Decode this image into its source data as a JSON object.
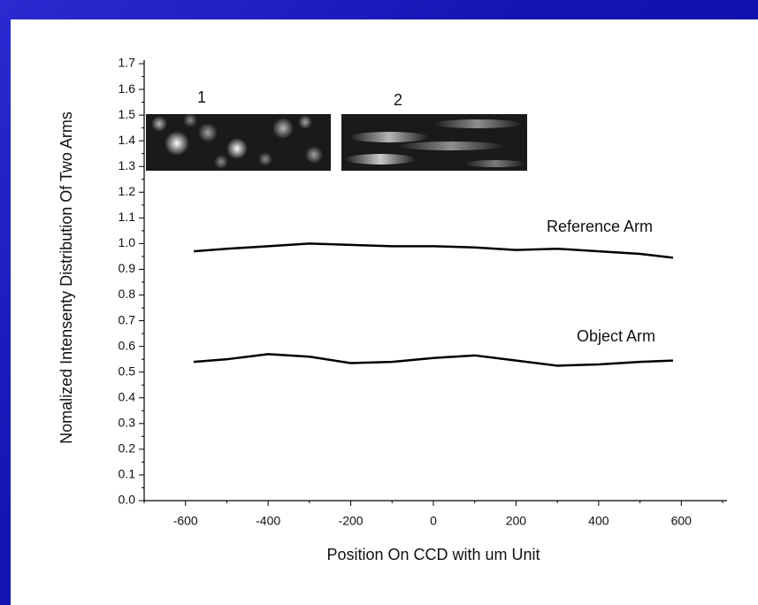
{
  "chart_data": {
    "type": "line",
    "xlabel": "Position On CCD with um Unit",
    "ylabel": "Nomalized Intensenty Distribution Of Two Arms",
    "x": [
      -580,
      -500,
      -400,
      -300,
      -200,
      -100,
      0,
      100,
      200,
      300,
      400,
      500,
      580
    ],
    "series": [
      {
        "name": "Reference Arm",
        "color": "#000000",
        "values": [
          0.97,
          0.98,
          0.99,
          1.0,
          0.995,
          0.99,
          0.99,
          0.985,
          0.975,
          0.98,
          0.97,
          0.96,
          0.945
        ]
      },
      {
        "name": "Object Arm",
        "color": "#000000",
        "values": [
          0.54,
          0.55,
          0.57,
          0.56,
          0.535,
          0.54,
          0.555,
          0.565,
          0.545,
          0.525,
          0.53,
          0.54,
          0.545
        ]
      }
    ],
    "annotations": [
      "1",
      "2"
    ],
    "xlim": [
      -700,
      700
    ],
    "xticks": [
      -600,
      -400,
      -200,
      0,
      200,
      400,
      600
    ],
    "ylim": [
      0,
      1.7
    ],
    "yticks": [
      {
        "value": 0,
        "label": "0.0"
      },
      {
        "value": 0.1,
        "label": "0.1"
      },
      {
        "value": 0.2,
        "label": "0.2"
      },
      {
        "value": 0.3,
        "label": "0.3"
      },
      {
        "value": 0.4,
        "label": "0.4"
      },
      {
        "value": 0.5,
        "label": "0.5"
      },
      {
        "value": 0.6,
        "label": "0.6"
      },
      {
        "value": 0.7,
        "label": "0.7"
      },
      {
        "value": 0.8,
        "label": "0.8"
      },
      {
        "value": 0.9,
        "label": "0.9"
      },
      {
        "value": 1.0,
        "label": "1.0"
      },
      {
        "value": 1.1,
        "label": "1.1"
      },
      {
        "value": 1.2,
        "label": "1.2"
      },
      {
        "value": 1.3,
        "label": "1.3"
      },
      {
        "value": 1.4,
        "label": "1.4"
      },
      {
        "value": 1.5,
        "label": "1.5"
      },
      {
        "value": 1.6,
        "label": "1.6"
      },
      {
        "value": 1.7,
        "label": "1.7"
      }
    ],
    "grid": false
  }
}
